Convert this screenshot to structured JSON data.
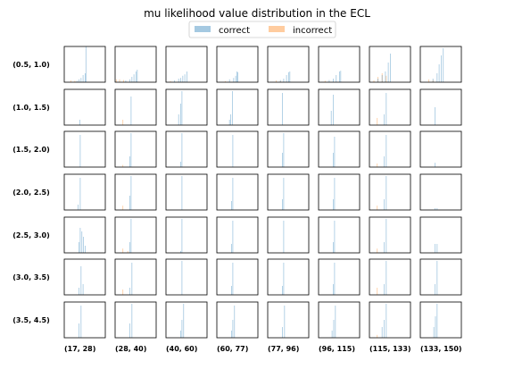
{
  "chart_data": {
    "type": "histogram-grid",
    "title": "mu likelihood value distribution in the ECL",
    "legend": {
      "placement": "top-center",
      "entries": [
        {
          "label": "correct",
          "color": "#1f77b4",
          "alpha": 0.4
        },
        {
          "label": "incorrect",
          "color": "#ff7f0e",
          "alpha": 0.4
        }
      ]
    },
    "row_labels": [
      "(0.5, 1.0)",
      "(1.0, 1.5)",
      "(1.5, 2.0)",
      "(2.0, 2.5)",
      "(2.5, 3.0)",
      "(3.0, 3.5)",
      "(3.5, 4.5)"
    ],
    "col_labels": [
      "(17, 28)",
      "(28, 40)",
      "(40, 60)",
      "(60, 77)",
      "(77, 96)",
      "(96, 115)",
      "(115, 133)",
      "(133, 150)"
    ],
    "x_range": [
      0,
      1
    ],
    "ticks": "hidden",
    "panels": [
      [
        {
          "correct": [
            [
              0.3,
              0.04
            ],
            [
              0.35,
              0.08
            ],
            [
              0.4,
              0.12
            ],
            [
              0.45,
              0.2
            ],
            [
              0.5,
              0.25
            ],
            [
              0.52,
              1.0
            ]
          ],
          "incorrect": [
            [
              0.15,
              0.05
            ],
            [
              0.25,
              0.04
            ]
          ]
        },
        {
          "correct": [
            [
              0.25,
              0.05
            ],
            [
              0.35,
              0.08
            ],
            [
              0.4,
              0.15
            ],
            [
              0.45,
              0.22
            ],
            [
              0.5,
              0.3
            ],
            [
              0.53,
              0.35
            ]
          ],
          "incorrect": [
            [
              0.02,
              0.08
            ],
            [
              0.1,
              0.08
            ],
            [
              0.2,
              0.06
            ]
          ]
        },
        {
          "correct": [
            [
              0.2,
              0.05
            ],
            [
              0.3,
              0.1
            ],
            [
              0.35,
              0.12
            ],
            [
              0.4,
              0.18
            ],
            [
              0.45,
              0.22
            ],
            [
              0.5,
              0.3
            ]
          ],
          "incorrect": [
            [
              0.1,
              0.03
            ]
          ]
        },
        {
          "correct": [
            [
              0.3,
              0.08
            ],
            [
              0.4,
              0.12
            ],
            [
              0.45,
              0.18
            ],
            [
              0.48,
              0.3
            ],
            [
              0.5,
              0.28
            ]
          ],
          "incorrect": [
            [
              0.2,
              0.03
            ]
          ]
        },
        {
          "correct": [
            [
              0.3,
              0.06
            ],
            [
              0.38,
              0.1
            ],
            [
              0.45,
              0.2
            ],
            [
              0.5,
              0.28
            ],
            [
              0.53,
              0.3
            ]
          ],
          "incorrect": [
            [
              0.2,
              0.05
            ],
            [
              0.3,
              0.03
            ]
          ]
        },
        {
          "correct": [
            [
              0.25,
              0.06
            ],
            [
              0.35,
              0.1
            ],
            [
              0.42,
              0.2
            ],
            [
              0.5,
              0.3
            ],
            [
              0.53,
              0.32
            ]
          ],
          "incorrect": [
            [
              0.15,
              0.04
            ]
          ]
        },
        {
          "correct": [
            [
              0.2,
              0.1
            ],
            [
              0.3,
              0.2
            ],
            [
              0.38,
              0.3
            ],
            [
              0.45,
              0.55
            ],
            [
              0.5,
              0.8
            ]
          ],
          "incorrect": [
            [
              0.1,
              0.05
            ],
            [
              0.2,
              0.15
            ],
            [
              0.3,
              0.25
            ],
            [
              0.4,
              0.18
            ]
          ]
        },
        {
          "correct": [
            [
              0.3,
              0.1
            ],
            [
              0.4,
              0.25
            ],
            [
              0.45,
              0.5
            ],
            [
              0.5,
              0.75
            ],
            [
              0.55,
              0.95
            ]
          ],
          "incorrect": [
            [
              0.2,
              0.08
            ],
            [
              0.3,
              0.06
            ]
          ]
        }
      ],
      [
        {
          "correct": [
            [
              0.37,
              0.15
            ]
          ],
          "incorrect": []
        },
        {
          "correct": [
            [
              0.38,
              0.8
            ]
          ],
          "incorrect": [
            [
              0.18,
              0.15
            ]
          ]
        },
        {
          "correct": [
            [
              0.3,
              0.3
            ],
            [
              0.35,
              0.6
            ],
            [
              0.38,
              0.95
            ]
          ],
          "incorrect": []
        },
        {
          "correct": [
            [
              0.3,
              0.15
            ],
            [
              0.33,
              0.3
            ],
            [
              0.37,
              0.95
            ]
          ],
          "incorrect": []
        },
        {
          "correct": [
            [
              0.35,
              0.9
            ]
          ],
          "incorrect": []
        },
        {
          "correct": [
            [
              0.3,
              0.4
            ],
            [
              0.35,
              0.85
            ]
          ],
          "incorrect": []
        },
        {
          "correct": [
            [
              0.35,
              0.3
            ],
            [
              0.4,
              0.9
            ]
          ],
          "incorrect": [
            [
              0.18,
              0.2
            ]
          ]
        },
        {
          "correct": [
            [
              0.35,
              0.5
            ]
          ],
          "incorrect": []
        }
      ],
      [
        {
          "correct": [
            [
              0.38,
              0.9
            ]
          ],
          "incorrect": []
        },
        {
          "correct": [
            [
              0.35,
              0.3
            ],
            [
              0.38,
              0.95
            ]
          ],
          "incorrect": [
            [
              0.18,
              0.06
            ]
          ]
        },
        {
          "correct": [
            [
              0.35,
              0.15
            ],
            [
              0.38,
              0.95
            ]
          ],
          "incorrect": []
        },
        {
          "correct": [
            [
              0.38,
              0.9
            ]
          ],
          "incorrect": []
        },
        {
          "correct": [
            [
              0.35,
              0.4
            ],
            [
              0.38,
              0.95
            ]
          ],
          "incorrect": []
        },
        {
          "correct": [
            [
              0.35,
              0.4
            ],
            [
              0.38,
              0.85
            ]
          ],
          "incorrect": []
        },
        {
          "correct": [
            [
              0.35,
              0.3
            ],
            [
              0.4,
              0.9
            ]
          ],
          "incorrect": [
            [
              0.18,
              0.1
            ]
          ]
        },
        {
          "correct": [
            [
              0.35,
              0.12
            ]
          ],
          "incorrect": []
        }
      ],
      [
        {
          "correct": [
            [
              0.33,
              0.15
            ],
            [
              0.38,
              0.9
            ]
          ],
          "incorrect": []
        },
        {
          "correct": [
            [
              0.35,
              0.4
            ],
            [
              0.38,
              0.95
            ]
          ],
          "incorrect": [
            [
              0.18,
              0.12
            ]
          ]
        },
        {
          "correct": [
            [
              0.38,
              0.95
            ]
          ],
          "incorrect": []
        },
        {
          "correct": [
            [
              0.35,
              0.25
            ],
            [
              0.38,
              0.9
            ]
          ],
          "incorrect": []
        },
        {
          "correct": [
            [
              0.35,
              0.3
            ],
            [
              0.38,
              0.9
            ]
          ],
          "incorrect": []
        },
        {
          "correct": [
            [
              0.35,
              0.3
            ],
            [
              0.38,
              0.9
            ]
          ],
          "incorrect": []
        },
        {
          "correct": [
            [
              0.35,
              0.3
            ],
            [
              0.4,
              0.95
            ]
          ],
          "incorrect": [
            [
              0.18,
              0.12
            ]
          ]
        },
        {
          "correct": [
            [
              0.35,
              0.05
            ],
            [
              0.4,
              0.05
            ]
          ],
          "incorrect": []
        }
      ],
      [
        {
          "correct": [
            [
              0.35,
              0.3
            ],
            [
              0.38,
              0.7
            ],
            [
              0.42,
              0.6
            ],
            [
              0.46,
              0.45
            ],
            [
              0.5,
              0.2
            ]
          ],
          "incorrect": []
        },
        {
          "correct": [
            [
              0.35,
              0.3
            ],
            [
              0.38,
              0.95
            ]
          ],
          "incorrect": [
            [
              0.18,
              0.12
            ],
            [
              0.3,
              0.05
            ]
          ]
        },
        {
          "correct": [
            [
              0.35,
              0.05
            ],
            [
              0.38,
              0.95
            ]
          ],
          "incorrect": []
        },
        {
          "correct": [
            [
              0.35,
              0.25
            ],
            [
              0.38,
              0.9
            ]
          ],
          "incorrect": []
        },
        {
          "correct": [
            [
              0.38,
              0.9
            ]
          ],
          "incorrect": []
        },
        {
          "correct": [
            [
              0.35,
              0.3
            ],
            [
              0.38,
              0.9
            ]
          ],
          "incorrect": []
        },
        {
          "correct": [
            [
              0.35,
              0.3
            ],
            [
              0.4,
              0.95
            ]
          ],
          "incorrect": [
            [
              0.18,
              0.12
            ]
          ]
        },
        {
          "correct": [
            [
              0.35,
              0.25
            ],
            [
              0.4,
              0.25
            ]
          ],
          "incorrect": []
        }
      ],
      [
        {
          "correct": [
            [
              0.35,
              0.2
            ],
            [
              0.4,
              0.8
            ],
            [
              0.45,
              0.3
            ]
          ],
          "incorrect": []
        },
        {
          "correct": [
            [
              0.35,
              0.2
            ],
            [
              0.4,
              0.9
            ]
          ],
          "incorrect": [
            [
              0.18,
              0.15
            ]
          ]
        },
        {
          "correct": [
            [
              0.38,
              0.95
            ]
          ],
          "incorrect": []
        },
        {
          "correct": [
            [
              0.35,
              0.25
            ],
            [
              0.38,
              0.9
            ]
          ],
          "incorrect": []
        },
        {
          "correct": [
            [
              0.35,
              0.25
            ],
            [
              0.38,
              0.9
            ]
          ],
          "incorrect": []
        },
        {
          "correct": [
            [
              0.35,
              0.3
            ],
            [
              0.38,
              0.9
            ]
          ],
          "incorrect": []
        },
        {
          "correct": [
            [
              0.35,
              0.3
            ],
            [
              0.4,
              0.95
            ]
          ],
          "incorrect": [
            [
              0.18,
              0.2
            ]
          ]
        },
        {
          "correct": [
            [
              0.35,
              0.3
            ],
            [
              0.4,
              0.95
            ]
          ],
          "incorrect": []
        }
      ],
      [
        {
          "correct": [
            [
              0.35,
              0.4
            ],
            [
              0.4,
              0.9
            ]
          ],
          "incorrect": []
        },
        {
          "correct": [
            [
              0.35,
              0.4
            ],
            [
              0.4,
              0.95
            ]
          ],
          "incorrect": []
        },
        {
          "correct": [
            [
              0.35,
              0.2
            ],
            [
              0.38,
              0.5
            ],
            [
              0.42,
              0.95
            ]
          ],
          "incorrect": []
        },
        {
          "correct": [
            [
              0.35,
              0.2
            ],
            [
              0.38,
              0.5
            ],
            [
              0.42,
              0.9
            ]
          ],
          "incorrect": []
        },
        {
          "correct": [
            [
              0.35,
              0.3
            ],
            [
              0.4,
              0.9
            ]
          ],
          "incorrect": []
        },
        {
          "correct": [
            [
              0.32,
              0.2
            ],
            [
              0.36,
              0.5
            ],
            [
              0.4,
              0.9
            ]
          ],
          "incorrect": []
        },
        {
          "correct": [
            [
              0.3,
              0.3
            ],
            [
              0.35,
              0.5
            ],
            [
              0.4,
              0.95
            ]
          ],
          "incorrect": [
            [
              0.18,
              0.08
            ]
          ]
        },
        {
          "correct": [
            [
              0.32,
              0.3
            ],
            [
              0.36,
              0.6
            ],
            [
              0.4,
              0.95
            ]
          ],
          "incorrect": []
        }
      ]
    ]
  }
}
